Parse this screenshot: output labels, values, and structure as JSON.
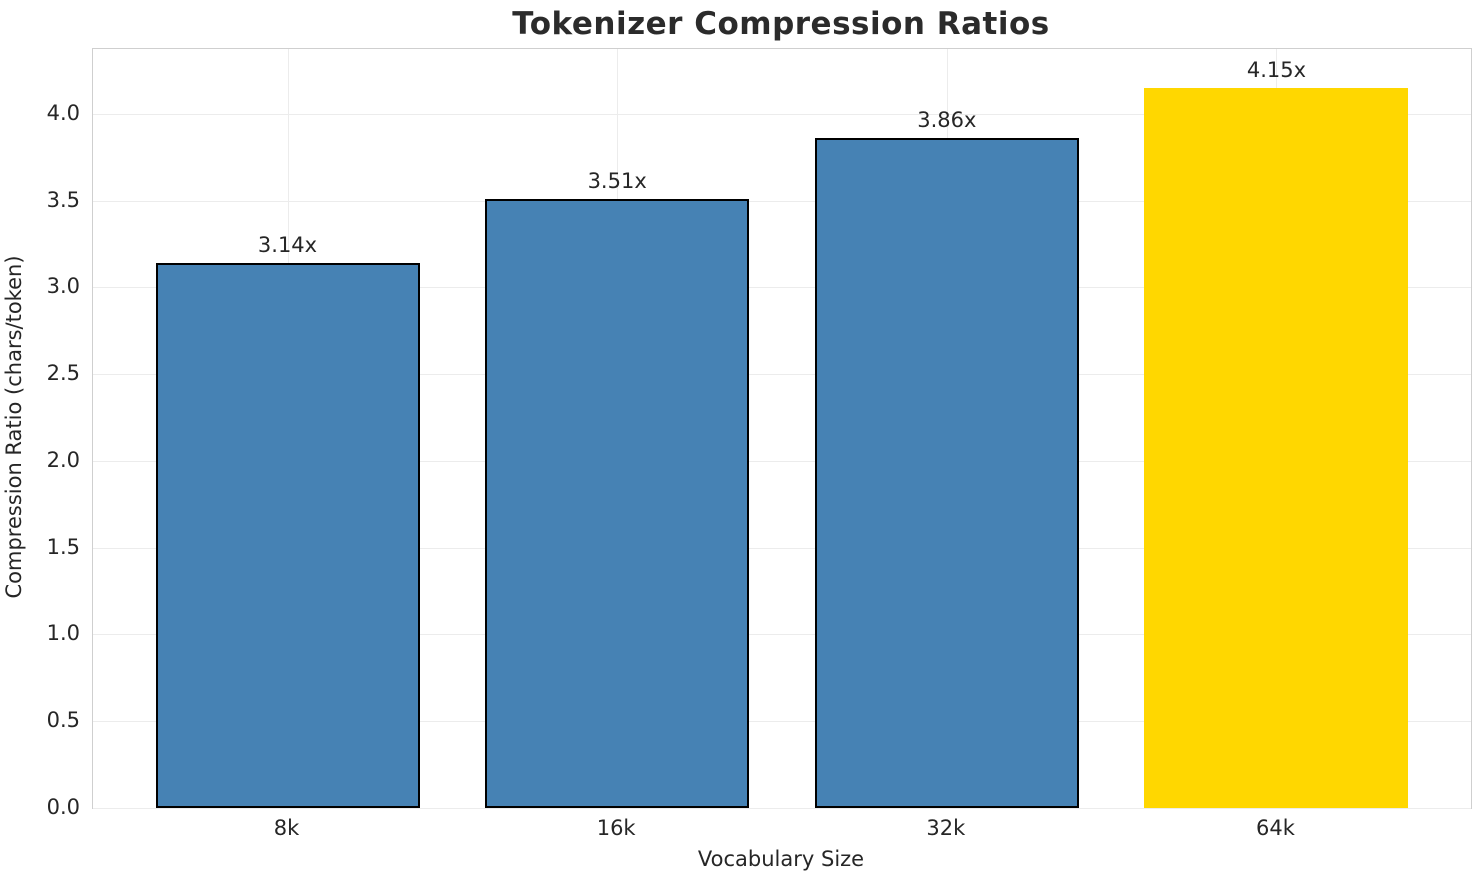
{
  "title": "Tokenizer Compression Ratios",
  "chart_data": {
    "type": "bar",
    "title": "Tokenizer Compression Ratios",
    "xlabel": "Vocabulary Size",
    "ylabel": "Compression Ratio (chars/token)",
    "categories": [
      "8k",
      "16k",
      "32k",
      "64k"
    ],
    "values": [
      3.14,
      3.51,
      3.86,
      4.15
    ],
    "value_labels": [
      "3.14x",
      "3.51x",
      "3.86x",
      "4.15x"
    ],
    "bar_colors": [
      "#4682B4",
      "#4682B4",
      "#4682B4",
      "#FFD700"
    ],
    "bar_edge_colors": [
      "#000000",
      "#000000",
      "#000000",
      "none"
    ],
    "highlight_index": 3,
    "ylim": [
      0,
      4.374
    ],
    "yticks": [
      0.0,
      0.5,
      1.0,
      1.5,
      2.0,
      2.5,
      3.0,
      3.5,
      4.0
    ],
    "ytick_labels": [
      "0.0",
      "0.5",
      "1.0",
      "1.5",
      "2.0",
      "2.5",
      "3.0",
      "3.5",
      "4.0"
    ],
    "grid": true,
    "grid_color": "#ececec",
    "spine_color": "#cfcfcf",
    "text_color": "#262626",
    "legend_position": "none"
  }
}
